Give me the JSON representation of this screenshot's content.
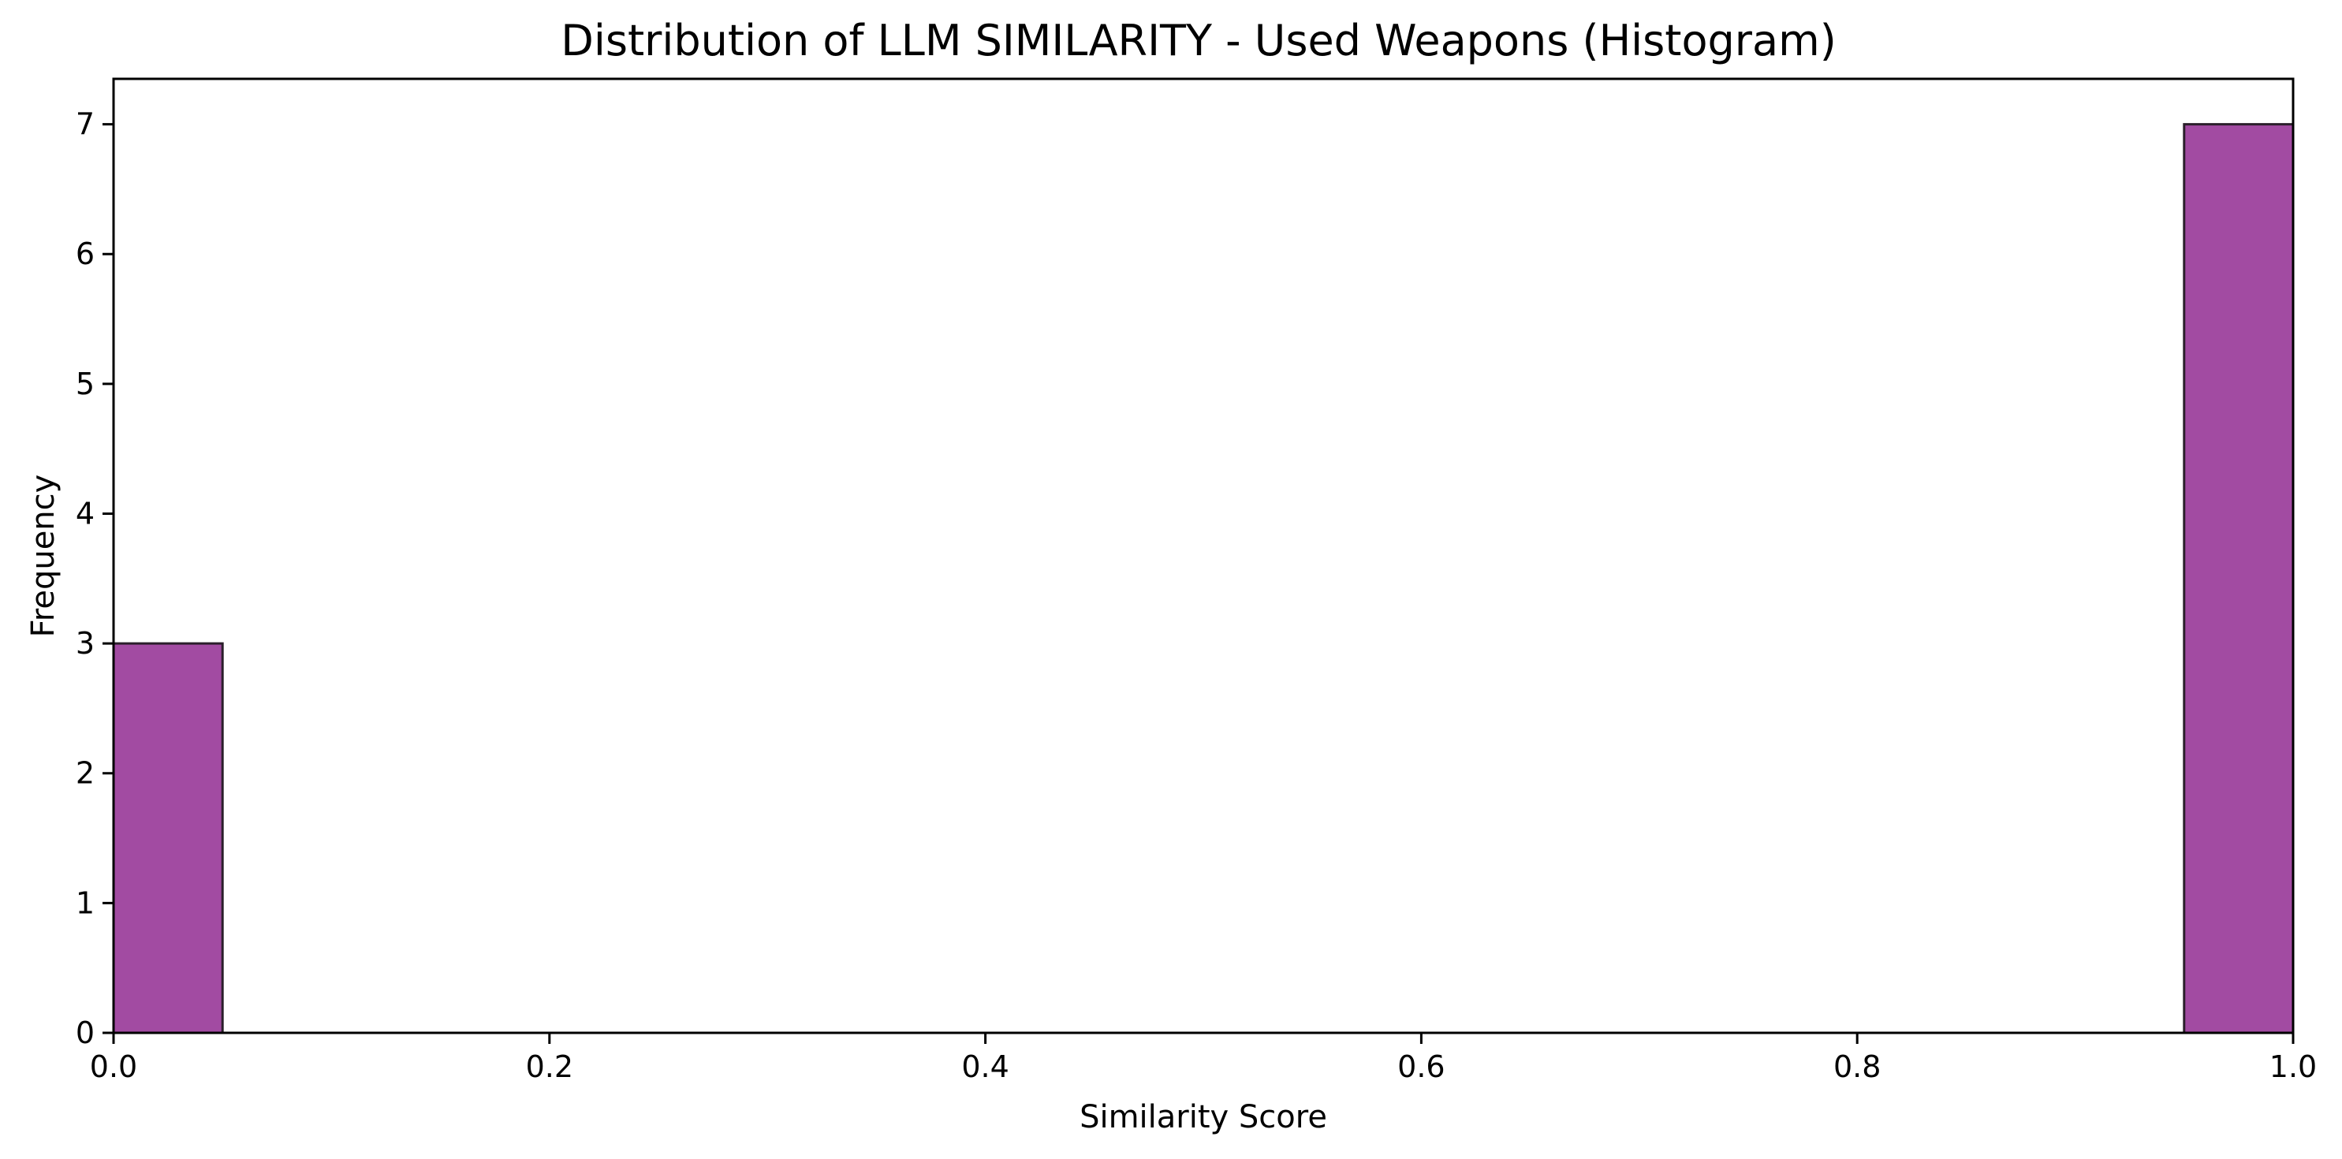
{
  "chart_data": {
    "type": "bar",
    "title": "Distribution of LLM SIMILARITY - Used Weapons (Histogram)",
    "xlabel": "Similarity Score",
    "ylabel": "Frequency",
    "xlim": [
      0.0,
      1.0
    ],
    "ylim": [
      0,
      7.35
    ],
    "x_ticks": [
      "0.0",
      "0.2",
      "0.4",
      "0.6",
      "0.8",
      "1.0"
    ],
    "y_ticks": [
      "0",
      "1",
      "2",
      "3",
      "4",
      "5",
      "6",
      "7"
    ],
    "bins": [
      {
        "start": 0.0,
        "end": 0.05,
        "count": 3
      },
      {
        "start": 0.95,
        "end": 1.0,
        "count": 7
      }
    ],
    "bar_color": "#a24ba2",
    "edge_color": "#2b1f2b",
    "grid": false
  }
}
